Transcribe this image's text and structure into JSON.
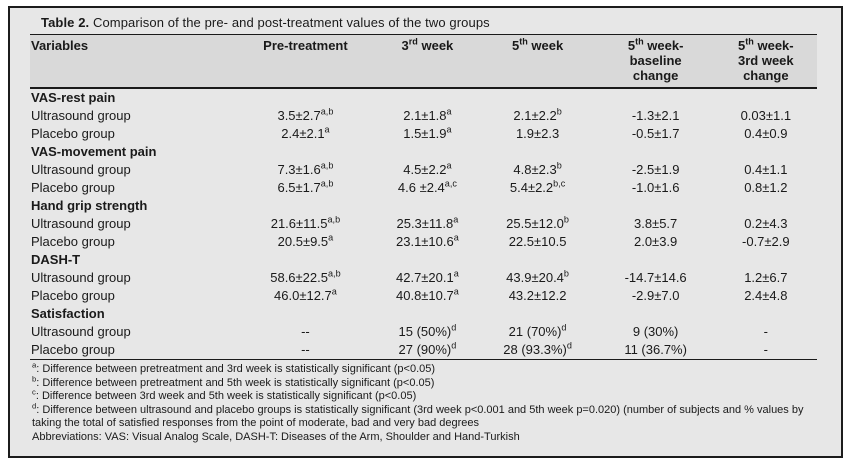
{
  "table": {
    "title_label": "Table 2.",
    "title_text": " Comparison of the pre- and post-treatment values of the two groups",
    "columns": [
      "Variables",
      "Pre-treatment",
      "3^{rd} week",
      "5^{th} week",
      "5^{th} week-\nbaseline\nchange",
      "5^{th} week-\n3rd week\nchange"
    ],
    "sections": [
      {
        "label": "VAS-rest pain",
        "rows": [
          {
            "label": "Ultrasound group",
            "values": [
              "3.5±2.7^{a,b}",
              "2.1±1.8^{a}",
              "2.1±2.2^{b}",
              "-1.3±2.1",
              "0.03±1.1"
            ]
          },
          {
            "label": "Placebo group",
            "values": [
              "2.4±2.1^{a}",
              "1.5±1.9^{a}",
              "1.9±2.3",
              "-0.5±1.7",
              "0.4±0.9"
            ]
          }
        ]
      },
      {
        "label": "VAS-movement pain",
        "rows": [
          {
            "label": "Ultrasound group",
            "values": [
              "7.3±1.6^{a,b}",
              "4.5±2.2^{a}",
              "4.8±2.3^{b}",
              "-2.5±1.9",
              "0.4±1.1"
            ]
          },
          {
            "label": "Placebo group",
            "values": [
              "6.5±1.7^{a,b}",
              "4.6 ±2.4^{a,c}",
              "5.4±2.2^{b,c}",
              "-1.0±1.6",
              "0.8±1.2"
            ]
          }
        ]
      },
      {
        "label": "Hand grip strength",
        "rows": [
          {
            "label": "Ultrasound group",
            "values": [
              "21.6±11.5^{a,b}",
              "25.3±11.8^{a}",
              "25.5±12.0^{b}",
              "3.8±5.7",
              "0.2±4.3"
            ]
          },
          {
            "label": "Placebo group",
            "values": [
              "20.5±9.5^{a}",
              "23.1±10.6^{a}",
              "22.5±10.5",
              "2.0±3.9",
              "-0.7±2.9"
            ]
          }
        ]
      },
      {
        "label": "DASH-T",
        "rows": [
          {
            "label": "Ultrasound group",
            "values": [
              "58.6±22.5^{a,b}",
              "42.7±20.1^{a}",
              "43.9±20.4^{b}",
              "-14.7±14.6",
              "1.2±6.7"
            ]
          },
          {
            "label": "Placebo group",
            "values": [
              "46.0±12.7^{a}",
              "40.8±10.7^{a}",
              "43.2±12.2",
              "-2.9±7.0",
              "2.4±4.8"
            ]
          }
        ]
      },
      {
        "label": "Satisfaction",
        "rows": [
          {
            "label": "Ultrasound group",
            "values": [
              "--",
              "15 (50%)^{d}",
              "21 (70%)^{d}",
              "9 (30%)",
              "-"
            ]
          },
          {
            "label": "Placebo group",
            "values": [
              "--",
              "27 (90%)^{d}",
              "28 (93.3%)^{d}",
              "11 (36.7%)",
              "-"
            ]
          }
        ]
      }
    ],
    "footnotes": [
      "^{a}: Difference between pretreatment and 3rd week is statistically significant (p<0.05)",
      "^{b}: Difference between pretreatment and 5th week is statistically significant (p<0.05)",
      "^{c}: Difference between 3rd week and 5th week is statistically significant (p<0.05)",
      "^{d}: Difference between ultrasound and placebo groups is statistically significant (3rd week p<0.001 and 5th week p=0.020) (number of subjects and % values by taking the total of satisfied responses from the point of moderate, bad and very bad degrees",
      "Abbreviations: VAS: Visual Analog Scale, DASH-T: Diseases of the Arm, Shoulder and Hand-Turkish"
    ],
    "colors": {
      "box_background": "#e7e7e7",
      "header_band": "#d9d9d9",
      "rule": "#1a1a1a",
      "text": "#1a1a1a"
    }
  }
}
